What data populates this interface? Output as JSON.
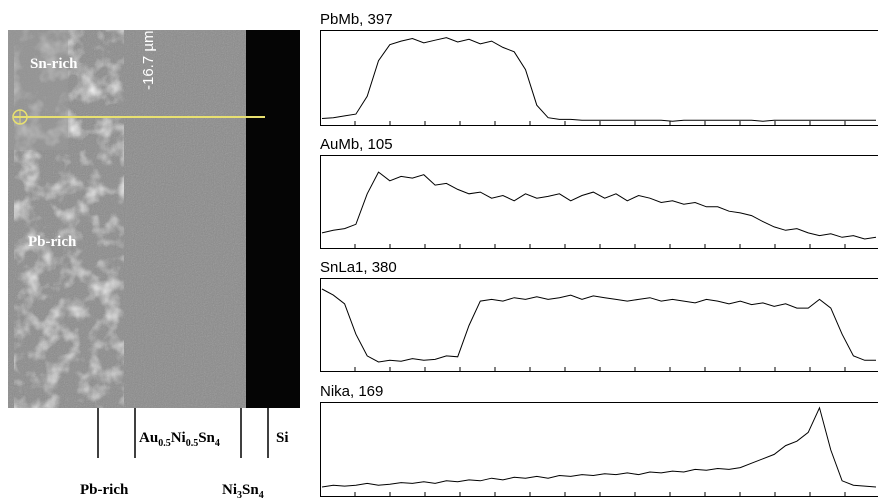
{
  "micrograph": {
    "regions": [
      "Sn-rich",
      "Pb-rich"
    ],
    "scale": "-16.7 µm",
    "phases": [
      {
        "parts": [
          "Pb-rich"
        ]
      },
      {
        "parts": [
          "Au",
          "0.5",
          "Ni",
          "0.5",
          "Sn",
          "4"
        ]
      },
      {
        "parts": [
          "Ni",
          "3",
          "Sn",
          "4"
        ]
      },
      {
        "parts": [
          "Si"
        ]
      }
    ]
  },
  "chart_data": [
    {
      "type": "line",
      "title": "PbMb, 397",
      "ylim": [
        0,
        100
      ],
      "color": "#000000",
      "values": [
        5,
        6,
        8,
        10,
        30,
        70,
        88,
        92,
        95,
        90,
        93,
        96,
        91,
        94,
        89,
        92,
        85,
        80,
        60,
        20,
        6,
        4,
        4,
        3,
        3,
        3,
        3,
        3,
        3,
        3,
        3,
        2,
        3,
        3,
        3,
        3,
        3,
        3,
        3,
        2,
        3,
        3,
        3,
        3,
        3,
        3,
        3,
        3,
        3,
        3
      ]
    },
    {
      "type": "line",
      "title": "AuMb, 105",
      "ylim": [
        0,
        100
      ],
      "color": "#000000",
      "values": [
        15,
        18,
        20,
        25,
        60,
        85,
        75,
        80,
        78,
        82,
        70,
        72,
        65,
        60,
        62,
        55,
        58,
        52,
        60,
        55,
        57,
        60,
        52,
        58,
        62,
        55,
        60,
        52,
        58,
        55,
        50,
        52,
        48,
        50,
        45,
        45,
        40,
        38,
        35,
        28,
        22,
        18,
        20,
        15,
        12,
        14,
        10,
        12,
        8,
        10
      ]
    },
    {
      "type": "line",
      "title": "SnLa1, 380",
      "ylim": [
        0,
        100
      ],
      "color": "#000000",
      "values": [
        92,
        85,
        75,
        40,
        15,
        8,
        10,
        9,
        12,
        10,
        11,
        15,
        14,
        50,
        78,
        80,
        78,
        82,
        80,
        83,
        80,
        82,
        85,
        80,
        84,
        82,
        80,
        78,
        80,
        82,
        78,
        80,
        78,
        76,
        80,
        78,
        75,
        78,
        74,
        76,
        72,
        75,
        70,
        70,
        80,
        70,
        40,
        15,
        10,
        10
      ]
    },
    {
      "type": "line",
      "title": "Nika, 169",
      "ylim": [
        0,
        100
      ],
      "color": "#000000",
      "values": [
        8,
        10,
        9,
        10,
        12,
        10,
        11,
        13,
        12,
        14,
        12,
        15,
        14,
        16,
        15,
        18,
        16,
        19,
        18,
        20,
        18,
        21,
        20,
        22,
        21,
        23,
        22,
        24,
        22,
        25,
        24,
        26,
        25,
        28,
        27,
        29,
        28,
        30,
        35,
        40,
        45,
        55,
        60,
        70,
        98,
        50,
        15,
        10,
        9,
        8
      ]
    }
  ]
}
